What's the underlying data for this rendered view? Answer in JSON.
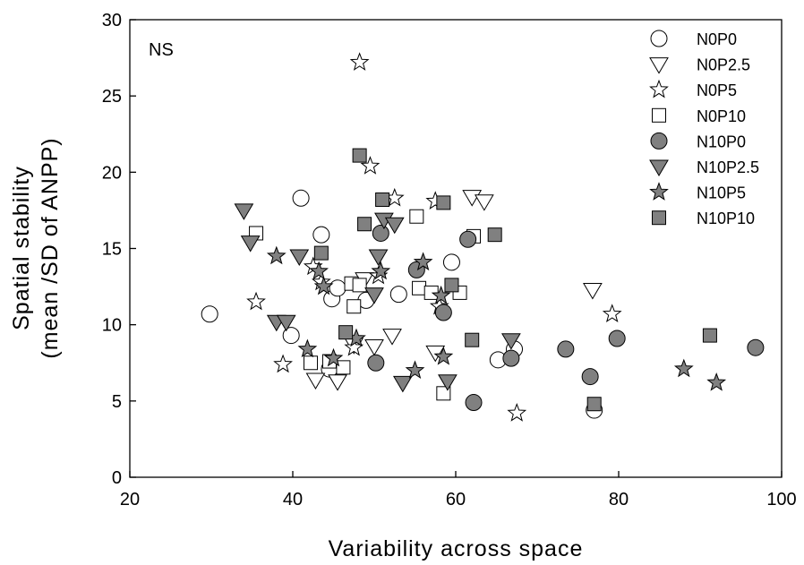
{
  "chart_data": {
    "type": "scatter",
    "title": "",
    "annotation": "NS",
    "xlabel": "Variability across space",
    "ylabel_line1": "Spatial stability",
    "ylabel_line2": "(mean /SD of ANPP)",
    "xlim": [
      20,
      100
    ],
    "ylim": [
      0,
      30
    ],
    "xticks": [
      20,
      40,
      60,
      80,
      100
    ],
    "yticks": [
      0,
      5,
      10,
      15,
      20,
      25,
      30
    ],
    "grid": false,
    "legend_position": "top-right",
    "colors": {
      "open": "#ffffff",
      "filled": "#808080",
      "stroke": "#000000"
    },
    "series": [
      {
        "name": "N0P0",
        "marker": "circle",
        "fill": "open",
        "points": [
          [
            29.8,
            10.7
          ],
          [
            39.8,
            9.3
          ],
          [
            41.0,
            18.3
          ],
          [
            43.5,
            15.9
          ],
          [
            44.5,
            7.1
          ],
          [
            44.8,
            11.7
          ],
          [
            45.5,
            12.4
          ],
          [
            49.0,
            11.6
          ],
          [
            53.0,
            12.0
          ],
          [
            59.5,
            14.1
          ],
          [
            65.2,
            7.7
          ],
          [
            67.2,
            8.4
          ],
          [
            77.0,
            4.4
          ]
        ]
      },
      {
        "name": "N0P2.5",
        "marker": "triangle-down",
        "fill": "open",
        "points": [
          [
            42.8,
            6.4
          ],
          [
            45.5,
            6.3
          ],
          [
            47.5,
            8.7
          ],
          [
            48.8,
            13.0
          ],
          [
            50.0,
            8.6
          ],
          [
            52.2,
            9.3
          ],
          [
            57.5,
            8.2
          ],
          [
            62.0,
            18.4
          ],
          [
            63.5,
            18.1
          ],
          [
            76.8,
            12.3
          ]
        ]
      },
      {
        "name": "N0P5",
        "marker": "star",
        "fill": "open",
        "points": [
          [
            35.5,
            11.5
          ],
          [
            38.8,
            7.4
          ],
          [
            42.5,
            13.8
          ],
          [
            43.5,
            12.8
          ],
          [
            47.5,
            8.5
          ],
          [
            48.2,
            27.2
          ],
          [
            49.5,
            20.4
          ],
          [
            50.5,
            13.2
          ],
          [
            52.5,
            18.3
          ],
          [
            57.5,
            18.1
          ],
          [
            58.0,
            11.2
          ],
          [
            67.5,
            4.2
          ],
          [
            79.2,
            10.7
          ]
        ]
      },
      {
        "name": "N0P10",
        "marker": "square",
        "fill": "open",
        "points": [
          [
            35.5,
            16.0
          ],
          [
            42.2,
            7.5
          ],
          [
            44.5,
            7.6
          ],
          [
            46.2,
            7.2
          ],
          [
            47.2,
            12.7
          ],
          [
            47.5,
            11.2
          ],
          [
            48.2,
            12.6
          ],
          [
            55.2,
            17.1
          ],
          [
            55.5,
            12.4
          ],
          [
            57.0,
            12.1
          ],
          [
            58.5,
            5.5
          ],
          [
            60.5,
            12.1
          ],
          [
            62.2,
            15.8
          ]
        ]
      },
      {
        "name": "N10P0",
        "marker": "circle",
        "fill": "filled",
        "points": [
          [
            50.2,
            7.5
          ],
          [
            50.8,
            16.0
          ],
          [
            55.2,
            13.6
          ],
          [
            58.5,
            10.8
          ],
          [
            62.2,
            4.9
          ],
          [
            61.5,
            15.6
          ],
          [
            66.8,
            7.8
          ],
          [
            73.5,
            8.4
          ],
          [
            76.5,
            6.6
          ],
          [
            79.8,
            9.1
          ],
          [
            96.8,
            8.5
          ]
        ]
      },
      {
        "name": "N10P2.5",
        "marker": "triangle-down",
        "fill": "filled",
        "points": [
          [
            34.0,
            17.5
          ],
          [
            34.8,
            15.4
          ],
          [
            38.0,
            10.2
          ],
          [
            39.2,
            10.2
          ],
          [
            40.8,
            14.5
          ],
          [
            50.0,
            12.0
          ],
          [
            50.5,
            14.5
          ],
          [
            51.2,
            16.9
          ],
          [
            52.5,
            16.6
          ],
          [
            53.5,
            6.2
          ],
          [
            59.0,
            6.3
          ],
          [
            66.8,
            9.0
          ]
        ]
      },
      {
        "name": "N10P5",
        "marker": "star",
        "fill": "filled",
        "points": [
          [
            38.0,
            14.5
          ],
          [
            41.8,
            8.4
          ],
          [
            43.2,
            13.5
          ],
          [
            43.8,
            12.5
          ],
          [
            45.0,
            7.8
          ],
          [
            47.8,
            9.1
          ],
          [
            50.8,
            13.5
          ],
          [
            55.0,
            7.0
          ],
          [
            56.0,
            14.1
          ],
          [
            58.2,
            11.9
          ],
          [
            58.5,
            7.9
          ],
          [
            88.0,
            7.1
          ],
          [
            92.0,
            6.2
          ]
        ]
      },
      {
        "name": "N10P10",
        "marker": "square",
        "fill": "filled",
        "points": [
          [
            43.5,
            14.7
          ],
          [
            46.5,
            9.5
          ],
          [
            48.2,
            21.1
          ],
          [
            48.8,
            16.6
          ],
          [
            51.0,
            18.2
          ],
          [
            58.5,
            18.0
          ],
          [
            59.5,
            12.6
          ],
          [
            62.0,
            9.0
          ],
          [
            64.8,
            15.9
          ],
          [
            77.0,
            4.8
          ],
          [
            91.2,
            9.3
          ]
        ]
      }
    ]
  }
}
